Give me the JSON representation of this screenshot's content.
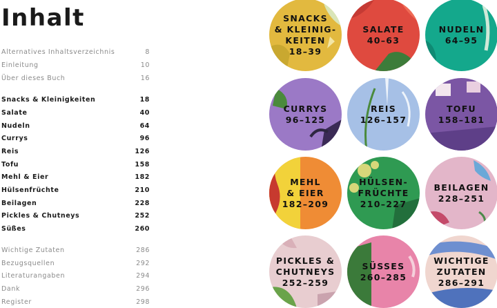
{
  "title": "Inhalt",
  "toc": [
    {
      "label": "Alternatives Inhaltsverzeichnis",
      "page": "8",
      "style": "muted"
    },
    {
      "label": "Einleitung",
      "page": "10",
      "style": "muted"
    },
    {
      "label": "Über dieses Buch",
      "page": "16",
      "style": "muted"
    },
    {
      "label": "Snacks & Kleinigkeiten",
      "page": "18",
      "style": "strong"
    },
    {
      "label": "Salate",
      "page": "40",
      "style": "strong"
    },
    {
      "label": "Nudeln",
      "page": "64",
      "style": "strong"
    },
    {
      "label": "Currys",
      "page": "96",
      "style": "strong"
    },
    {
      "label": "Reis",
      "page": "126",
      "style": "strong"
    },
    {
      "label": "Tofu",
      "page": "158",
      "style": "strong"
    },
    {
      "label": "Mehl & Eier",
      "page": "182",
      "style": "strong"
    },
    {
      "label": "Hülsenfrüchte",
      "page": "210",
      "style": "strong"
    },
    {
      "label": "Beilagen",
      "page": "228",
      "style": "strong"
    },
    {
      "label": "Pickles & Chutneys",
      "page": "252",
      "style": "strong"
    },
    {
      "label": "Süßes",
      "page": "260",
      "style": "strong"
    },
    {
      "label": "Wichtige Zutaten",
      "page": "286",
      "style": "muted"
    },
    {
      "label": "Bezugsquellen",
      "page": "292",
      "style": "muted"
    },
    {
      "label": "Literaturangaben",
      "page": "294",
      "style": "muted"
    },
    {
      "label": "Dank",
      "page": "296",
      "style": "muted"
    },
    {
      "label": "Register",
      "page": "298",
      "style": "muted"
    }
  ],
  "chapters": [
    {
      "lines": [
        "SNACKS",
        "& KLEINIG-",
        "KEITEN",
        "18–39"
      ],
      "color": "#e2b93f"
    },
    {
      "lines": [
        "SALATE",
        "40–63"
      ],
      "color": "#df4a3f"
    },
    {
      "lines": [
        "NUDELN",
        "64–95"
      ],
      "color": "#14a88c"
    },
    {
      "lines": [
        "CURRYS",
        "96–125"
      ],
      "color": "#9b79c6"
    },
    {
      "lines": [
        "REIS",
        "126–157"
      ],
      "color": "#a6c0e6"
    },
    {
      "lines": [
        "TOFU",
        "158–181"
      ],
      "color": "#7b56a4"
    },
    {
      "lines": [
        "MEHL",
        "& EIER",
        "182–209"
      ],
      "color": "#ef8c35"
    },
    {
      "lines": [
        "HÜLSEN-",
        "FRÜCHTE",
        "210–227"
      ],
      "color": "#2f9a52"
    },
    {
      "lines": [
        "BEILAGEN",
        "228–251"
      ],
      "color": "#e3b6c9"
    },
    {
      "lines": [
        "PICKLES &",
        "CHUTNEYS",
        "252–259"
      ],
      "color": "#e8cdd0"
    },
    {
      "lines": [
        "SÜSSES",
        "260–285"
      ],
      "color": "#e884a9"
    },
    {
      "lines": [
        "WICHTIGE",
        "ZUTATEN",
        "286–291"
      ],
      "color": "#f0d6cf"
    }
  ]
}
